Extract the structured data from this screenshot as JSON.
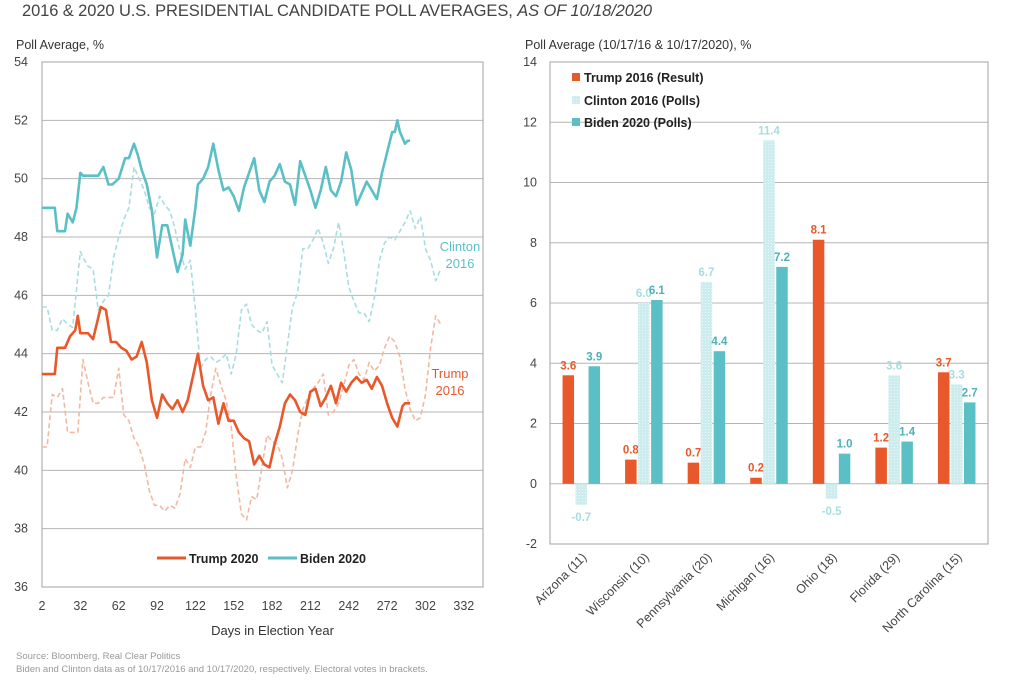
{
  "header": {
    "title_main": "2016 & 2020 U.S. PRESIDENTIAL CANDIDATE POLL AVERAGES, ",
    "title_italic": "AS OF 10/18/2020"
  },
  "footer": {
    "source": "Source: Bloomberg, Real Clear Politics",
    "note": "Biden and Clinton data as of 10/17/2016 and 10/17/2020, respectively. Electoral votes in brackets."
  },
  "colors": {
    "trump": "#e8582a",
    "trump_2016": "#f2b8a2",
    "biden": "#5bc0c6",
    "clinton": "#a8dde0",
    "clinton_bar": "#cdeced",
    "grid": "#b5b5b5"
  },
  "chart_data": [
    {
      "type": "line",
      "title": "",
      "ylabel": "Poll Average, %",
      "xlabel": "Days in Election Year",
      "ylim": [
        36,
        54
      ],
      "xlim": [
        2,
        347
      ],
      "yticks": [
        "36",
        "38",
        "40",
        "42",
        "44",
        "46",
        "48",
        "50",
        "52",
        "54"
      ],
      "xticks": [
        "2",
        "32",
        "62",
        "92",
        "122",
        "152",
        "182",
        "212",
        "242",
        "272",
        "302",
        "332"
      ],
      "grid": true,
      "legend": {
        "placement": "bottom-center",
        "entries": [
          "Trump 2020",
          "Biden 2020"
        ]
      },
      "annotations": [
        {
          "text_line1": "Clinton",
          "text_line2": "2016",
          "series": "Clinton 2016"
        },
        {
          "text_line1": "Trump",
          "text_line2": "2016",
          "series": "Trump 2016"
        }
      ],
      "series": [
        {
          "name": "Biden 2020",
          "style": "solid",
          "x": [
            2,
            12,
            14,
            20,
            22,
            26,
            29,
            32,
            34,
            46,
            50,
            54,
            57,
            62,
            67,
            70,
            74,
            77,
            80,
            84,
            88,
            92,
            96,
            100,
            104,
            108,
            112,
            114,
            118,
            122,
            124,
            128,
            132,
            136,
            140,
            144,
            148,
            152,
            156,
            160,
            164,
            168,
            172,
            176,
            180,
            184,
            188,
            192,
            196,
            200,
            204,
            208,
            212,
            216,
            220,
            224,
            228,
            232,
            236,
            240,
            244,
            248,
            252,
            256,
            260,
            264,
            268,
            272,
            276,
            278,
            280,
            282,
            284,
            286,
            288,
            290
          ],
          "y": [
            49.0,
            49.0,
            48.2,
            48.2,
            48.8,
            48.5,
            49.0,
            50.2,
            50.1,
            50.1,
            50.4,
            49.8,
            49.8,
            50.0,
            50.7,
            50.7,
            51.2,
            50.8,
            50.3,
            49.8,
            48.9,
            47.3,
            48.4,
            48.4,
            47.6,
            46.8,
            47.4,
            48.6,
            47.7,
            49.0,
            49.8,
            50.0,
            50.4,
            51.2,
            50.3,
            49.6,
            49.7,
            49.4,
            48.9,
            49.7,
            50.2,
            50.7,
            49.6,
            49.2,
            49.9,
            50.1,
            50.5,
            49.9,
            49.8,
            49.1,
            50.6,
            50.1,
            49.6,
            49.0,
            49.6,
            50.4,
            49.6,
            49.4,
            49.9,
            50.9,
            50.3,
            49.1,
            49.5,
            49.9,
            49.6,
            49.3,
            50.2,
            50.9,
            51.6,
            51.6,
            52.0,
            51.6,
            51.4,
            51.2,
            51.3,
            51.3
          ]
        },
        {
          "name": "Trump 2020",
          "style": "solid",
          "x": [
            2,
            12,
            14,
            20,
            24,
            28,
            30,
            32,
            38,
            42,
            48,
            52,
            56,
            60,
            64,
            68,
            72,
            76,
            80,
            84,
            88,
            92,
            96,
            100,
            104,
            108,
            112,
            116,
            120,
            124,
            128,
            132,
            136,
            140,
            144,
            148,
            152,
            156,
            160,
            164,
            168,
            172,
            176,
            180,
            184,
            188,
            192,
            196,
            200,
            204,
            208,
            212,
            216,
            220,
            224,
            228,
            232,
            236,
            240,
            244,
            248,
            252,
            256,
            260,
            264,
            268,
            272,
            276,
            280,
            284,
            286,
            290
          ],
          "y": [
            43.3,
            43.3,
            44.2,
            44.2,
            44.6,
            44.8,
            45.3,
            44.7,
            44.7,
            44.5,
            45.6,
            45.5,
            44.4,
            44.4,
            44.2,
            44.1,
            43.8,
            43.9,
            44.4,
            43.7,
            42.4,
            41.8,
            42.6,
            42.3,
            42.1,
            42.4,
            42.0,
            42.4,
            43.2,
            44.0,
            42.9,
            42.4,
            42.5,
            41.6,
            42.3,
            41.7,
            41.7,
            41.3,
            41.1,
            41.0,
            40.2,
            40.5,
            40.2,
            40.1,
            40.9,
            41.5,
            42.3,
            42.6,
            42.4,
            42.0,
            41.9,
            42.7,
            42.8,
            42.2,
            42.5,
            42.9,
            42.3,
            43.0,
            42.7,
            43.0,
            43.2,
            43.0,
            43.1,
            42.8,
            43.2,
            42.9,
            42.3,
            41.8,
            41.5,
            42.2,
            42.3,
            42.3
          ]
        },
        {
          "name": "Clinton 2016",
          "style": "dashed",
          "x": [
            2,
            6,
            10,
            14,
            18,
            22,
            26,
            32,
            34,
            38,
            42,
            46,
            50,
            54,
            58,
            62,
            66,
            70,
            74,
            78,
            82,
            86,
            90,
            94,
            98,
            102,
            106,
            110,
            114,
            118,
            122,
            126,
            130,
            134,
            138,
            142,
            146,
            150,
            154,
            158,
            162,
            166,
            170,
            174,
            178,
            182,
            186,
            190,
            194,
            198,
            202,
            206,
            210,
            214,
            218,
            222,
            226,
            230,
            234,
            238,
            242,
            246,
            250,
            254,
            258,
            262,
            266,
            270,
            274,
            278,
            282,
            286,
            290,
            294,
            298,
            302,
            306,
            310,
            314
          ],
          "y": [
            45.6,
            45.6,
            44.8,
            44.8,
            45.2,
            45.0,
            44.9,
            47.5,
            47.3,
            47.0,
            46.9,
            45.5,
            45.8,
            46.0,
            47.3,
            48.0,
            48.6,
            49.0,
            50.4,
            50.0,
            49.6,
            49.0,
            48.8,
            49.4,
            49.1,
            48.9,
            48.3,
            47.5,
            46.9,
            47.2,
            45.5,
            43.5,
            43.8,
            43.9,
            43.7,
            43.8,
            44.0,
            43.3,
            44.0,
            45.5,
            45.7,
            45.0,
            44.8,
            44.7,
            45.1,
            43.6,
            43.3,
            43.0,
            44.3,
            45.6,
            46.1,
            47.6,
            47.6,
            47.9,
            48.3,
            47.8,
            47.1,
            47.6,
            48.5,
            47.5,
            46.3,
            45.8,
            45.4,
            45.4,
            45.1,
            45.9,
            47.2,
            47.8,
            48.0,
            47.9,
            48.2,
            48.5,
            48.9,
            48.3,
            48.7,
            47.6,
            47.2,
            46.5,
            46.9
          ]
        },
        {
          "name": "Trump 2016",
          "style": "dashed",
          "x": [
            2,
            6,
            10,
            14,
            18,
            22,
            26,
            30,
            34,
            38,
            42,
            46,
            50,
            54,
            58,
            62,
            66,
            70,
            74,
            78,
            82,
            86,
            90,
            94,
            98,
            102,
            106,
            110,
            114,
            118,
            122,
            126,
            130,
            134,
            138,
            142,
            146,
            150,
            154,
            158,
            162,
            166,
            170,
            174,
            178,
            182,
            186,
            190,
            194,
            198,
            202,
            206,
            210,
            214,
            218,
            222,
            226,
            230,
            234,
            238,
            242,
            246,
            250,
            254,
            258,
            262,
            266,
            270,
            274,
            278,
            282,
            286,
            290,
            294,
            298,
            302,
            306,
            310,
            314
          ],
          "y": [
            40.8,
            40.8,
            42.6,
            42.5,
            42.8,
            41.3,
            41.3,
            41.3,
            43.8,
            43.0,
            42.3,
            42.3,
            42.5,
            42.5,
            42.5,
            43.5,
            41.9,
            41.7,
            41.1,
            40.8,
            40.2,
            39.3,
            38.8,
            38.8,
            38.6,
            38.8,
            38.7,
            39.2,
            40.4,
            40.1,
            40.8,
            40.8,
            41.3,
            42.6,
            43.5,
            42.9,
            42.4,
            41.5,
            39.8,
            38.5,
            38.3,
            39.1,
            39.0,
            40.1,
            41.2,
            41.0,
            40.9,
            40.4,
            39.4,
            40.0,
            41.2,
            42.1,
            42.5,
            42.8,
            43.0,
            43.3,
            41.9,
            42.0,
            42.3,
            42.9,
            43.6,
            43.8,
            43.3,
            43.1,
            43.7,
            43.4,
            43.6,
            44.2,
            44.6,
            44.4,
            43.9,
            42.8,
            42.1,
            41.7,
            41.8,
            42.6,
            44.2,
            45.3,
            45.0
          ]
        }
      ]
    },
    {
      "type": "bar",
      "title": "",
      "ylabel": "Poll Average (10/17/16 & 10/17/2020), %",
      "xlabel": "",
      "ylim": [
        -2,
        14
      ],
      "yticks": [
        "-2",
        "0",
        "2",
        "4",
        "6",
        "8",
        "10",
        "12",
        "14"
      ],
      "grid": true,
      "legend": {
        "placement": "top-left",
        "entries": [
          "Trump 2016 (Result)",
          "Clinton 2016 (Polls)",
          "Biden 2020 (Polls)"
        ]
      },
      "categories": [
        "Arizona (11)",
        "Wisconsin (10)",
        "Pennsylvania (20)",
        "Michigan (16)",
        "Ohio (18)",
        "Florida (29)",
        "North Carolina (15)"
      ],
      "series": [
        {
          "name": "Trump 2016 (Result)",
          "values": [
            3.6,
            0.8,
            0.7,
            0.2,
            8.1,
            1.2,
            3.7
          ],
          "labels": [
            "3.6",
            "0.8",
            "0.7",
            "0.2",
            "8.1",
            "1.2",
            "3.7"
          ]
        },
        {
          "name": "Clinton 2016 (Polls)",
          "values": [
            -0.7,
            6.0,
            6.7,
            11.4,
            -0.5,
            3.6,
            3.3
          ],
          "labels": [
            "-0.7",
            "6.0",
            "6.7",
            "11.4",
            "-0.5",
            "3.6",
            "3.3"
          ]
        },
        {
          "name": "Biden 2020 (Polls)",
          "values": [
            3.9,
            6.1,
            4.4,
            7.2,
            1.0,
            1.4,
            2.7
          ],
          "labels": [
            "3.9",
            "6.1",
            "4.4",
            "7.2",
            "1.0",
            "1.4",
            "2.7"
          ]
        }
      ]
    }
  ]
}
